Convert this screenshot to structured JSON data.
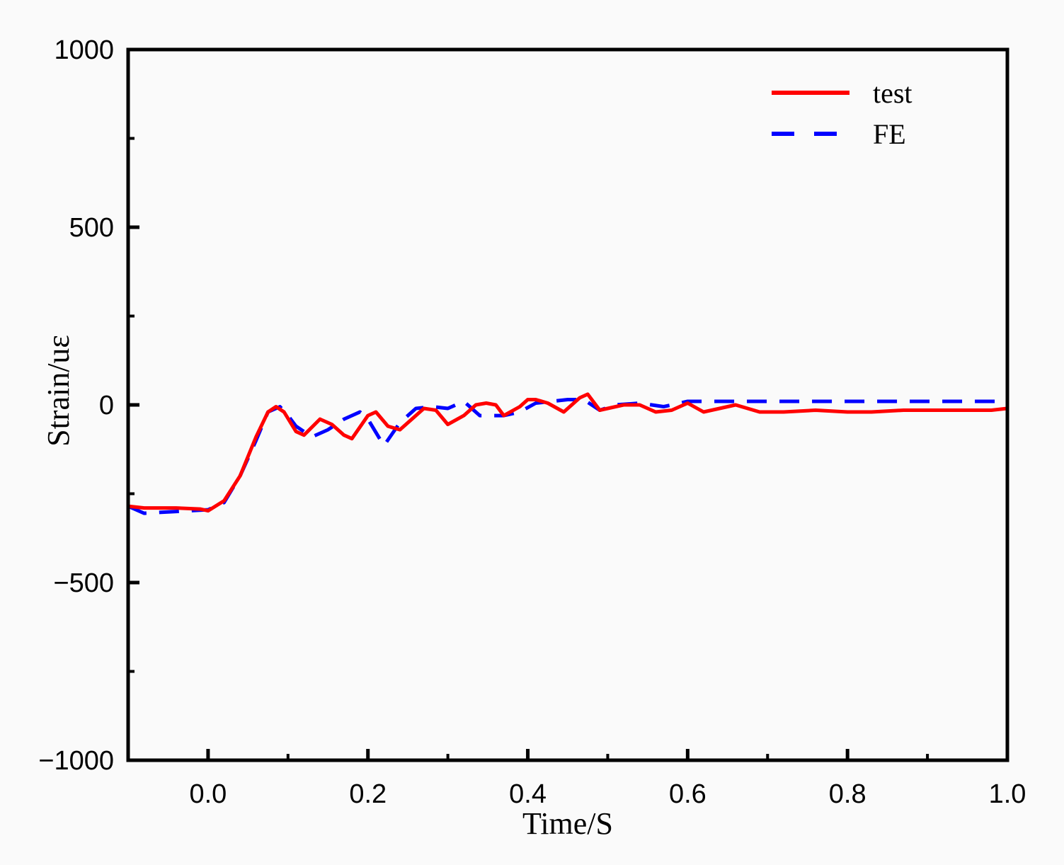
{
  "chart_data": {
    "type": "line",
    "title": "",
    "xlabel": "Time/S",
    "ylabel": "Strain/uε",
    "xlim": [
      -0.1,
      1.0
    ],
    "ylim": [
      -1000,
      1000
    ],
    "x_ticks": [
      0.0,
      0.2,
      0.4,
      0.6,
      0.8,
      1.0
    ],
    "x_tick_labels": [
      "0.0",
      "0.2",
      "0.4",
      "0.6",
      "0.8",
      "1.0"
    ],
    "y_ticks": [
      -1000,
      -500,
      0,
      500,
      1000
    ],
    "y_tick_labels": [
      "−1000",
      "−500",
      "0",
      "500",
      "1000"
    ],
    "grid": false,
    "legend_position": "top-right",
    "series": [
      {
        "name": "test",
        "color": "#ff0000",
        "style": "solid",
        "x": [
          -0.1,
          -0.08,
          -0.04,
          -0.01,
          0.0,
          0.02,
          0.04,
          0.06,
          0.075,
          0.085,
          0.095,
          0.11,
          0.12,
          0.14,
          0.155,
          0.17,
          0.18,
          0.2,
          0.21,
          0.225,
          0.24,
          0.255,
          0.27,
          0.285,
          0.3,
          0.32,
          0.335,
          0.348,
          0.36,
          0.37,
          0.39,
          0.4,
          0.41,
          0.425,
          0.445,
          0.465,
          0.475,
          0.49,
          0.52,
          0.54,
          0.56,
          0.58,
          0.6,
          0.62,
          0.64,
          0.66,
          0.69,
          0.72,
          0.76,
          0.8,
          0.83,
          0.87,
          0.9,
          0.94,
          0.98,
          1.0
        ],
        "y": [
          -285,
          -290,
          -290,
          -293,
          -298,
          -270,
          -200,
          -90,
          -20,
          -5,
          -20,
          -75,
          -85,
          -40,
          -55,
          -85,
          -95,
          -30,
          -20,
          -60,
          -70,
          -40,
          -10,
          -15,
          -55,
          -30,
          0,
          5,
          0,
          -30,
          -5,
          15,
          15,
          5,
          -20,
          20,
          30,
          -15,
          0,
          0,
          -20,
          -15,
          5,
          -20,
          -10,
          0,
          -20,
          -20,
          -15,
          -20,
          -20,
          -15,
          -15,
          -15,
          -15,
          -10
        ]
      },
      {
        "name": "FE",
        "color": "#0000ff",
        "style": "dashed",
        "x": [
          -0.1,
          -0.08,
          -0.04,
          0.0,
          0.02,
          0.04,
          0.06,
          0.075,
          0.09,
          0.1,
          0.11,
          0.13,
          0.15,
          0.17,
          0.19,
          0.2,
          0.22,
          0.24,
          0.26,
          0.28,
          0.3,
          0.32,
          0.34,
          0.37,
          0.39,
          0.41,
          0.43,
          0.45,
          0.47,
          0.49,
          0.51,
          0.54,
          0.57,
          0.6,
          0.65,
          0.7,
          0.8,
          0.9,
          1.0
        ],
        "y": [
          -285,
          -305,
          -300,
          -295,
          -275,
          -200,
          -100,
          -20,
          -5,
          -30,
          -60,
          -90,
          -70,
          -40,
          -20,
          -40,
          -115,
          -50,
          -10,
          -5,
          -10,
          10,
          -30,
          -30,
          -20,
          5,
          10,
          15,
          15,
          -15,
          0,
          5,
          -5,
          10,
          10,
          10,
          10,
          10,
          10
        ]
      }
    ]
  }
}
